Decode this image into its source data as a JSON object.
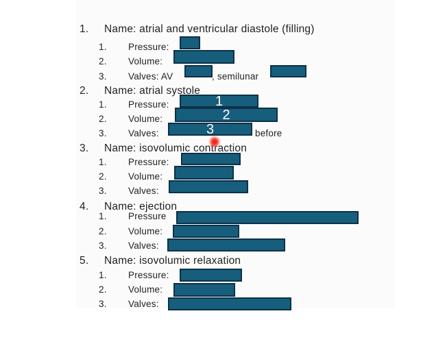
{
  "slide": {
    "colors": {
      "redaction_fill": "#175E7D",
      "redaction_border": "#0C3147",
      "overlay_digit_color": "#FFFFFF",
      "laser_dot": "#F2362B",
      "text": "#1F1F1F"
    },
    "sections": [
      {
        "number": "1.",
        "title": "Name: atrial and ventricular diastole (filling)",
        "rows": [
          {
            "number": "1.",
            "label": "Pressure:"
          },
          {
            "number": "2.",
            "label": "Volume:"
          },
          {
            "number": "3.",
            "label": "Valves: AV",
            "after_text": ", semilunar"
          }
        ]
      },
      {
        "number": "2.",
        "title": "Name: atrial systole",
        "rows": [
          {
            "number": "1.",
            "label": "Pressure:",
            "overlay": "1"
          },
          {
            "number": "2.",
            "label": "Volume:",
            "overlay": "2"
          },
          {
            "number": "3.",
            "label": "Valves:",
            "overlay": "3",
            "after_text": "before"
          }
        ]
      },
      {
        "number": "3.",
        "title": "Name: isovolumic contraction",
        "rows": [
          {
            "number": "1.",
            "label": "Pressure:"
          },
          {
            "number": "2.",
            "label": "Volume:"
          },
          {
            "number": "3.",
            "label": "Valves:"
          }
        ]
      },
      {
        "number": "4.",
        "title": "Name: ejection",
        "rows": [
          {
            "number": "1.",
            "label": "Pressure"
          },
          {
            "number": "2.",
            "label": "Volume:"
          },
          {
            "number": "3.",
            "label": "Valves:"
          }
        ]
      },
      {
        "number": "5.",
        "title": "Name: isovolumic relaxation",
        "rows": [
          {
            "number": "1.",
            "label": "Pressure:"
          },
          {
            "number": "2.",
            "label": "Volume:"
          },
          {
            "number": "3.",
            "label": "Valves:"
          }
        ]
      }
    ]
  }
}
